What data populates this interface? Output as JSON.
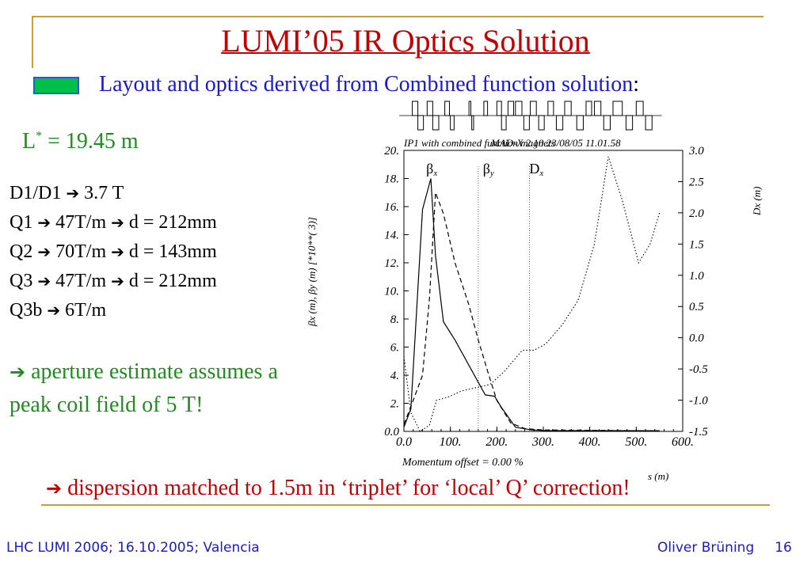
{
  "title": "LUMI’05 IR Optics Solution",
  "subtitle": {
    "text": "Layout and optics derived from Combined function solution",
    "colon": ":"
  },
  "lstar": {
    "base": "L",
    "sup": "*",
    "rest": " = 19.45 m"
  },
  "specs": [
    {
      "pre": "D1/D1 ",
      "post": " 3.7 T"
    },
    {
      "pre": "Q1 ",
      "post": " 47T/m ",
      "post2": " d = 212mm"
    },
    {
      "pre": "Q2 ",
      "post": " 70T/m ",
      "post2": " d = 143mm"
    },
    {
      "pre": "Q3 ",
      "post": " 47T/m ",
      "post2": " d = 212mm"
    },
    {
      "pre": "Q3b ",
      "post": " 6T/m"
    }
  ],
  "note": {
    "arrow": "➔",
    "text": " aperture estimate assumes a peak coil field of 5 T!"
  },
  "bottom_note": {
    "arrow": "➔",
    "text": " dispersion matched to 1.5m in ‘triplet’ for ‘local’ Q’ correction!"
  },
  "footer": {
    "left": "LHC LUMI 2006; 16.10.2005; Valencia",
    "author": "Oliver Brüning",
    "page": "16"
  },
  "arrow_glyph": "➔",
  "colors": {
    "title": "#c00000",
    "accent_green": "#228b22",
    "blue": "#1a1acb",
    "gold": "#c9a227",
    "box_green": "#00c04b"
  },
  "chart_data": {
    "type": "line",
    "header_left": "IP1 with combined function magnets",
    "header_overlap": "MAD-X 2.10  23/08/05  11.01.58",
    "ylabel_left": "β",
    "ylabel_left_text": "βx (m), βy (m)   [*10**(  3)]",
    "ylabel_right": "Dx (m)",
    "xlabel": "s (m)",
    "momentum": "Momentum offset =     0.00 %",
    "xlim": [
      0,
      600
    ],
    "ylim_left": [
      0,
      20
    ],
    "ylim_right": [
      -1.5,
      3.0
    ],
    "x_ticks": [
      "0.0",
      "100.",
      "200.",
      "300.",
      "400.",
      "500.",
      "600."
    ],
    "y_left_ticks": [
      "0.0",
      "2.",
      "4.",
      "6.",
      "8.",
      "10.",
      "12.",
      "14.",
      "16.",
      "18.",
      "20."
    ],
    "y_right_ticks": [
      "-1.5",
      "-1.0",
      "-0.5",
      "0.0",
      "0.5",
      "1.0",
      "1.5",
      "2.0",
      "2.5",
      "3.0"
    ],
    "legend": [
      {
        "name": "βx",
        "base": "β",
        "sub": "x",
        "style": "solid",
        "x": 48
      },
      {
        "name": "βy",
        "base": "β",
        "sub": "y",
        "style": "dashed",
        "x": 170
      },
      {
        "name": "Dx",
        "base": "D",
        "sub": "x",
        "style": "dotted",
        "x": 270
      }
    ],
    "series": [
      {
        "name": "βx",
        "axis": "left",
        "style": "solid",
        "x": [
          0,
          15,
          40,
          58,
          68,
          85,
          110,
          135,
          160,
          175,
          195,
          210,
          240,
          275,
          310,
          400,
          500,
          550
        ],
        "y": [
          0.3,
          1.6,
          15.8,
          18.0,
          12.5,
          7.8,
          6.5,
          5.0,
          3.5,
          2.6,
          2.5,
          1.7,
          0.3,
          0.1,
          0.05,
          0.05,
          0.05,
          0.05
        ]
      },
      {
        "name": "βy",
        "axis": "left",
        "style": "dashed",
        "x": [
          0,
          20,
          40,
          55,
          68,
          85,
          110,
          140,
          160,
          180,
          200,
          230,
          260,
          300,
          400,
          500,
          550
        ],
        "y": [
          0.5,
          2.2,
          4.0,
          9.5,
          17.0,
          15.5,
          12.0,
          9.0,
          6.5,
          4.3,
          2.2,
          0.6,
          0.2,
          0.1,
          0.08,
          0.05,
          0.05
        ]
      },
      {
        "name": "Dx",
        "axis": "right",
        "style": "dotted",
        "x": [
          0,
          15,
          35,
          55,
          70,
          95,
          125,
          155,
          185,
          215,
          255,
          280,
          305,
          340,
          375,
          410,
          440,
          470,
          505,
          530,
          550
        ],
        "y": [
          -0.3,
          -1.2,
          -1.5,
          -1.4,
          -1.0,
          -0.95,
          -0.85,
          -0.8,
          -0.75,
          -0.55,
          -0.2,
          -0.2,
          -0.1,
          0.2,
          0.6,
          1.5,
          2.9,
          2.2,
          1.2,
          1.5,
          2.0
        ]
      }
    ],
    "markers_x": [
      160,
      270
    ],
    "magnets": [
      {
        "x0": 18,
        "x1": 30,
        "dir": "up"
      },
      {
        "x0": 30,
        "x1": 42,
        "dir": "down"
      },
      {
        "x0": 50,
        "x1": 62,
        "dir": "up"
      },
      {
        "x0": 62,
        "x1": 75,
        "dir": "down"
      },
      {
        "x0": 88,
        "x1": 98,
        "dir": "up"
      },
      {
        "x0": 100,
        "x1": 108,
        "dir": "down"
      },
      {
        "x0": 140,
        "x1": 144,
        "dir": "up"
      },
      {
        "x0": 146,
        "x1": 150,
        "dir": "down"
      },
      {
        "x0": 172,
        "x1": 180,
        "dir": "up"
      },
      {
        "x0": 200,
        "x1": 210,
        "dir": "up"
      },
      {
        "x0": 210,
        "x1": 220,
        "dir": "down"
      },
      {
        "x0": 224,
        "x1": 236,
        "dir": "up"
      },
      {
        "x0": 240,
        "x1": 254,
        "dir": "up"
      },
      {
        "x0": 258,
        "x1": 270,
        "dir": "down"
      },
      {
        "x0": 272,
        "x1": 285,
        "dir": "up"
      },
      {
        "x0": 290,
        "x1": 302,
        "dir": "down"
      },
      {
        "x0": 310,
        "x1": 322,
        "dir": "up"
      },
      {
        "x0": 328,
        "x1": 342,
        "dir": "down"
      },
      {
        "x0": 346,
        "x1": 360,
        "dir": "up"
      },
      {
        "x0": 372,
        "x1": 386,
        "dir": "down"
      },
      {
        "x0": 392,
        "x1": 404,
        "dir": "up"
      },
      {
        "x0": 410,
        "x1": 424,
        "dir": "up"
      },
      {
        "x0": 430,
        "x1": 444,
        "dir": "down"
      },
      {
        "x0": 450,
        "x1": 470,
        "dir": "up"
      },
      {
        "x0": 478,
        "x1": 492,
        "dir": "down"
      },
      {
        "x0": 500,
        "x1": 515,
        "dir": "up"
      },
      {
        "x0": 520,
        "x1": 534,
        "dir": "down"
      }
    ]
  }
}
